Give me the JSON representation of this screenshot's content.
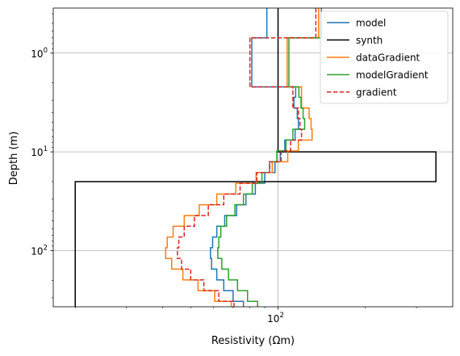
{
  "chart_data": {
    "type": "line",
    "title": "",
    "xlabel": "Resistivity (Ωm)",
    "ylabel": "Depth (m)",
    "xscale": "log",
    "yscale": "log",
    "yinverted": true,
    "xlim": [
      16.8,
      400
    ],
    "ylim": [
      0.35,
      370
    ],
    "grid": true,
    "legend_position": "top-right",
    "x_ticks": [
      {
        "value": 100,
        "base": "10",
        "exp": "2"
      }
    ],
    "y_ticks": [
      {
        "value": 1,
        "base": "10",
        "exp": "0"
      },
      {
        "value": 10,
        "base": "10",
        "exp": "1"
      },
      {
        "value": 100,
        "base": "10",
        "exp": "2"
      }
    ],
    "series": [
      {
        "name": "model",
        "color": "#1f77b4",
        "dash": "solid",
        "steps": [
          {
            "value": 91.5,
            "top": 0.35,
            "bottom": 0.4
          },
          {
            "value": 91.5,
            "top": 0.4,
            "bottom": 0.7
          },
          {
            "value": 81.2,
            "top": 0.7,
            "bottom": 2.2
          },
          {
            "value": 115.0,
            "top": 2.2,
            "bottom": 2.8
          },
          {
            "value": 113.5,
            "top": 2.8,
            "bottom": 3.6
          },
          {
            "value": 116.5,
            "top": 3.6,
            "bottom": 4.6
          },
          {
            "value": 117.5,
            "top": 4.6,
            "bottom": 5.9
          },
          {
            "value": 114.5,
            "top": 5.9,
            "bottom": 7.6
          },
          {
            "value": 105.5,
            "top": 7.6,
            "bottom": 9.8
          },
          {
            "value": 101.8,
            "top": 9.8,
            "bottom": 12.6
          },
          {
            "value": 97.6,
            "top": 12.6,
            "bottom": 16.2
          },
          {
            "value": 90.0,
            "top": 16.2,
            "bottom": 20.8
          },
          {
            "value": 83.5,
            "top": 20.8,
            "bottom": 26.7
          },
          {
            "value": 77.5,
            "top": 26.7,
            "bottom": 34.3
          },
          {
            "value": 72.0,
            "top": 34.3,
            "bottom": 44.1
          },
          {
            "value": 65.5,
            "top": 44.1,
            "bottom": 56.6
          },
          {
            "value": 61.5,
            "top": 56.6,
            "bottom": 72.8
          },
          {
            "value": 59.5,
            "top": 72.8,
            "bottom": 93.5
          },
          {
            "value": 58.5,
            "top": 93.5,
            "bottom": 120
          },
          {
            "value": 59.0,
            "top": 120,
            "bottom": 154
          },
          {
            "value": 61.5,
            "top": 154,
            "bottom": 198
          },
          {
            "value": 65.0,
            "top": 198,
            "bottom": 254
          },
          {
            "value": 70.0,
            "top": 254,
            "bottom": 326
          },
          {
            "value": 76.0,
            "top": 326,
            "bottom": 419
          },
          {
            "value": 82.5,
            "top": 419,
            "bottom": 538
          },
          {
            "value": 88.5,
            "top": 538,
            "bottom": 580
          }
        ]
      },
      {
        "name": "synth",
        "color": "#000000",
        "dash": "solid",
        "steps": [
          {
            "value": 100,
            "top": 0.35,
            "bottom": 10
          },
          {
            "value": 350,
            "top": 10,
            "bottom": 20
          },
          {
            "value": 20,
            "top": 20,
            "bottom": 580
          }
        ]
      },
      {
        "name": "dataGradient",
        "color": "#ff7f0e",
        "dash": "solid",
        "steps": [
          {
            "value": 138.0,
            "top": 0.35,
            "bottom": 0.7
          },
          {
            "value": 107.5,
            "top": 0.7,
            "bottom": 2.2
          },
          {
            "value": 120.5,
            "top": 2.2,
            "bottom": 3.6
          },
          {
            "value": 128.0,
            "top": 3.6,
            "bottom": 4.6
          },
          {
            "value": 130.0,
            "top": 4.6,
            "bottom": 5.9
          },
          {
            "value": 131.0,
            "top": 5.9,
            "bottom": 7.6
          },
          {
            "value": 117.5,
            "top": 7.6,
            "bottom": 9.8
          },
          {
            "value": 108.0,
            "top": 9.8,
            "bottom": 12.6
          },
          {
            "value": 95.5,
            "top": 12.6,
            "bottom": 16.2
          },
          {
            "value": 84.0,
            "top": 16.2,
            "bottom": 20.8
          },
          {
            "value": 71.5,
            "top": 20.8,
            "bottom": 26.7
          },
          {
            "value": 61.5,
            "top": 26.7,
            "bottom": 34.3
          },
          {
            "value": 53.5,
            "top": 34.3,
            "bottom": 44.1
          },
          {
            "value": 47.5,
            "top": 44.1,
            "bottom": 56.6
          },
          {
            "value": 43.5,
            "top": 56.6,
            "bottom": 72.8
          },
          {
            "value": 41.5,
            "top": 72.8,
            "bottom": 93.5
          },
          {
            "value": 41.0,
            "top": 93.5,
            "bottom": 120
          },
          {
            "value": 43.0,
            "top": 120,
            "bottom": 154
          },
          {
            "value": 47.0,
            "top": 154,
            "bottom": 198
          },
          {
            "value": 53.0,
            "top": 198,
            "bottom": 254
          },
          {
            "value": 60.5,
            "top": 254,
            "bottom": 326
          },
          {
            "value": 69.0,
            "top": 326,
            "bottom": 419
          },
          {
            "value": 78.0,
            "top": 419,
            "bottom": 538
          },
          {
            "value": 85.5,
            "top": 538,
            "bottom": 580
          }
        ]
      },
      {
        "name": "modelGradient",
        "color": "#2ca02c",
        "dash": "solid",
        "steps": [
          {
            "value": 141.0,
            "top": 0.35,
            "bottom": 0.7
          },
          {
            "value": 109.0,
            "top": 0.7,
            "bottom": 2.2
          },
          {
            "value": 118.0,
            "top": 2.2,
            "bottom": 2.8
          },
          {
            "value": 120.0,
            "top": 2.8,
            "bottom": 3.6
          },
          {
            "value": 122.0,
            "top": 3.6,
            "bottom": 4.6
          },
          {
            "value": 123.5,
            "top": 4.6,
            "bottom": 5.9
          },
          {
            "value": 112.5,
            "top": 5.9,
            "bottom": 7.6
          },
          {
            "value": 106.5,
            "top": 7.6,
            "bottom": 9.8
          },
          {
            "value": 99.0,
            "top": 9.8,
            "bottom": 12.6
          },
          {
            "value": 93.5,
            "top": 12.6,
            "bottom": 16.2
          },
          {
            "value": 88.0,
            "top": 16.2,
            "bottom": 20.8
          },
          {
            "value": 81.5,
            "top": 20.8,
            "bottom": 26.7
          },
          {
            "value": 76.0,
            "top": 26.7,
            "bottom": 34.3
          },
          {
            "value": 71.0,
            "top": 34.3,
            "bottom": 44.1
          },
          {
            "value": 66.5,
            "top": 44.1,
            "bottom": 56.6
          },
          {
            "value": 63.5,
            "top": 56.6,
            "bottom": 72.8
          },
          {
            "value": 62.5,
            "top": 72.8,
            "bottom": 93.5
          },
          {
            "value": 62.0,
            "top": 93.5,
            "bottom": 120
          },
          {
            "value": 64.0,
            "top": 120,
            "bottom": 154
          },
          {
            "value": 67.5,
            "top": 154,
            "bottom": 198
          },
          {
            "value": 72.5,
            "top": 198,
            "bottom": 254
          },
          {
            "value": 78.5,
            "top": 254,
            "bottom": 326
          },
          {
            "value": 85.0,
            "top": 326,
            "bottom": 419
          },
          {
            "value": 92.5,
            "top": 419,
            "bottom": 538
          },
          {
            "value": 101.5,
            "top": 538,
            "bottom": 580
          }
        ]
      },
      {
        "name": "gradient",
        "color": "#d62728",
        "dash": "dashed",
        "steps": [
          {
            "value": 135.0,
            "top": 0.35,
            "bottom": 0.7
          },
          {
            "value": 80.0,
            "top": 0.7,
            "bottom": 2.2
          },
          {
            "value": 112.5,
            "top": 2.2,
            "bottom": 3.6
          },
          {
            "value": 117.5,
            "top": 3.6,
            "bottom": 4.6
          },
          {
            "value": 119.0,
            "top": 4.6,
            "bottom": 5.9
          },
          {
            "value": 120.5,
            "top": 5.9,
            "bottom": 7.6
          },
          {
            "value": 110.5,
            "top": 7.6,
            "bottom": 9.8
          },
          {
            "value": 102.5,
            "top": 9.8,
            "bottom": 12.6
          },
          {
            "value": 93.5,
            "top": 12.6,
            "bottom": 16.2
          },
          {
            "value": 84.5,
            "top": 16.2,
            "bottom": 20.8
          },
          {
            "value": 74.0,
            "top": 20.8,
            "bottom": 26.7
          },
          {
            "value": 65.0,
            "top": 26.7,
            "bottom": 34.3
          },
          {
            "value": 57.5,
            "top": 34.3,
            "bottom": 44.1
          },
          {
            "value": 51.5,
            "top": 44.1,
            "bottom": 56.6
          },
          {
            "value": 47.5,
            "top": 56.6,
            "bottom": 72.8
          },
          {
            "value": 45.5,
            "top": 72.8,
            "bottom": 93.5
          },
          {
            "value": 45.0,
            "top": 93.5,
            "bottom": 120
          },
          {
            "value": 46.5,
            "top": 120,
            "bottom": 154
          },
          {
            "value": 50.0,
            "top": 154,
            "bottom": 198
          },
          {
            "value": 55.5,
            "top": 198,
            "bottom": 254
          },
          {
            "value": 62.5,
            "top": 254,
            "bottom": 326
          },
          {
            "value": 70.5,
            "top": 326,
            "bottom": 419
          },
          {
            "value": 78.5,
            "top": 419,
            "bottom": 538
          },
          {
            "value": 84.0,
            "top": 538,
            "bottom": 580
          }
        ]
      }
    ]
  }
}
